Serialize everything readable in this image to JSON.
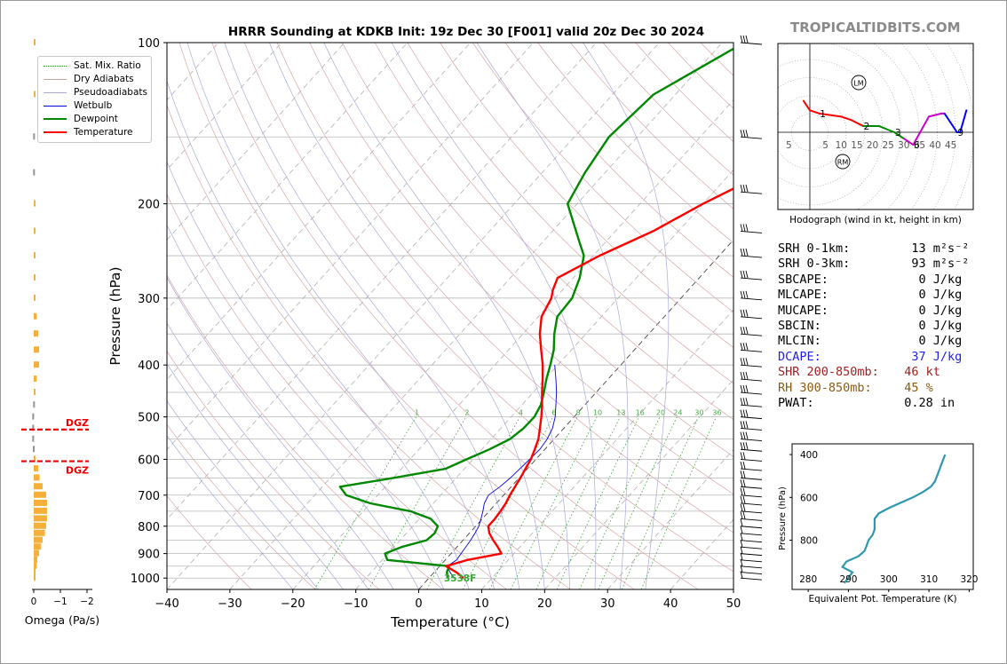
{
  "chart_data": {
    "type": "line",
    "title": "HRRR Sounding at KDKB Init: 19z Dec 30 [F001] valid 20z Dec 30 2024",
    "xlabel": "Temperature (°C)",
    "ylabel": "Pressure (hPa)",
    "xlim": [
      -40,
      50
    ],
    "ylim": [
      1050,
      100
    ],
    "y_scale": "log",
    "x_ticks": [
      "−40",
      "−30",
      "−20",
      "−10",
      "0",
      "10",
      "20",
      "30",
      "40",
      "50"
    ],
    "y_ticks": [
      "100",
      "200",
      "300",
      "400",
      "500",
      "600",
      "700",
      "800",
      "900",
      "1000"
    ],
    "series": [
      {
        "name": "Temperature",
        "color": "#ff0000",
        "p": [
          1000,
          975,
          950,
          925,
          900,
          875,
          850,
          825,
          800,
          775,
          750,
          725,
          700,
          675,
          650,
          625,
          600,
          575,
          550,
          525,
          500,
          475,
          450,
          425,
          400,
          375,
          350,
          325,
          300,
          290,
          275,
          250,
          225,
          200,
          175,
          150,
          125,
          100
        ],
        "t": [
          5.5,
          3.5,
          1.0,
          3.5,
          8.0,
          6.5,
          4.8,
          3.2,
          2.0,
          2.0,
          1.8,
          1.5,
          1.0,
          0.6,
          0.2,
          -0.3,
          -0.8,
          -1.6,
          -2.5,
          -3.8,
          -5.2,
          -6.8,
          -8.6,
          -10.4,
          -12.4,
          -14.8,
          -17.3,
          -19.5,
          -20.6,
          -21.5,
          -22.5,
          -19.0,
          -14.0,
          -10.0,
          -4.5,
          1.0,
          6.0,
          9.5
        ]
      },
      {
        "name": "Dewpoint",
        "color": "#008800",
        "p": [
          1000,
          975,
          950,
          925,
          900,
          875,
          850,
          825,
          800,
          775,
          750,
          725,
          700,
          675,
          650,
          625,
          600,
          575,
          550,
          525,
          500,
          475,
          450,
          425,
          400,
          375,
          350,
          325,
          300,
          275,
          250,
          235,
          200,
          175,
          150,
          125,
          100
        ],
        "t": [
          3.0,
          2.0,
          1.5,
          -9.2,
          -10.5,
          -8.8,
          -5.8,
          -5.5,
          -6.0,
          -8.2,
          -12.5,
          -20.0,
          -25.0,
          -27.2,
          -20.0,
          -13.0,
          -11.0,
          -8.8,
          -7.0,
          -6.4,
          -6.3,
          -7.0,
          -8.3,
          -9.8,
          -11.2,
          -12.8,
          -15.0,
          -17.0,
          -17.3,
          -19.0,
          -21.5,
          -24.3,
          -31.5,
          -33.2,
          -34.5,
          -33.5,
          -26.5
        ]
      },
      {
        "name": "Wetbulb",
        "color": "#0000dd",
        "p": [
          1000,
          975,
          950,
          925,
          900,
          875,
          850,
          825,
          800,
          775,
          750,
          725,
          700,
          675,
          650,
          625,
          600,
          575,
          550,
          525,
          500,
          475,
          450,
          425,
          400
        ],
        "t": [
          4.0,
          2.5,
          1.2,
          1.8,
          1.6,
          1.4,
          1.2,
          0.9,
          0.5,
          -0.2,
          -1.0,
          -1.9,
          -2.4,
          -1.8,
          -1.4,
          -1.2,
          -1.0,
          -0.8,
          -1.1,
          -1.8,
          -3.0,
          -4.6,
          -6.3,
          -8.3,
          -10.5
        ]
      }
    ],
    "legend": [
      "Sat. Mix. Ratio",
      "Dry Adiabats",
      "Pseudoadiabats",
      "Wetbulb",
      "Dewpoint",
      "Temperature"
    ],
    "legend_position": "top-left",
    "mixing_ratio_labels": [
      "1",
      "2",
      "4",
      "6",
      "8",
      "10",
      "13",
      "16",
      "20",
      "24",
      "30",
      "36"
    ],
    "surface_label": "3538F",
    "grid": true,
    "omega": {
      "xlabel": "Omega (Pa/s)",
      "x_ticks": [
        "0",
        "−1",
        "−2"
      ],
      "dgz_label": "DGZ",
      "dgz_top_hpa": 528,
      "dgz_bottom_hpa": 605,
      "p": [
        1000,
        975,
        950,
        925,
        900,
        875,
        850,
        825,
        800,
        775,
        750,
        725,
        700,
        675,
        650,
        625,
        600,
        575,
        550,
        525,
        500,
        475,
        450,
        425,
        400,
        375,
        350,
        325,
        300,
        275,
        250,
        225,
        200,
        175,
        150,
        125,
        100
      ],
      "omega": [
        -0.02,
        -0.06,
        -0.1,
        -0.12,
        -0.18,
        -0.25,
        -0.3,
        -0.38,
        -0.42,
        -0.45,
        -0.45,
        -0.45,
        -0.42,
        -0.3,
        -0.2,
        -0.15,
        -0.07,
        0.03,
        0.05,
        0.05,
        0.05,
        0.02,
        -0.04,
        -0.1,
        -0.18,
        -0.18,
        -0.15,
        -0.1,
        -0.03,
        -0.02,
        -0.02,
        -0.02,
        -0.02,
        0.02,
        0.02,
        -0.02,
        -0.02
      ]
    },
    "hodograph": {
      "xlabel": "Hodograph (wind in kt, height in km)",
      "ring_labels": [
        "5",
        "5",
        "10",
        "15",
        "20",
        "25",
        "30",
        "35",
        "40",
        "45"
      ],
      "height_labels": [
        "1",
        "2",
        "3",
        "6",
        "9"
      ],
      "storm_markers": [
        "LM",
        "RM"
      ],
      "u": [
        -2,
        0,
        3,
        10,
        13,
        17,
        22,
        27,
        30,
        33,
        38,
        42,
        43,
        47,
        48,
        50
      ],
      "v": [
        10,
        7,
        6,
        5,
        4,
        2,
        2,
        0,
        -2,
        -4,
        5,
        6,
        6,
        0,
        0,
        7
      ],
      "segment_colors": [
        "#ff0000",
        "#ff0000",
        "#ff0000",
        "#ff0000",
        "#ff0000",
        "#008800",
        "#008800",
        "#008800",
        "#cc00cc",
        "#cc00cc",
        "#cc00cc",
        "#cc00cc",
        "#0000ff",
        "#0000ff",
        "#0000ff"
      ]
    },
    "theta_e": {
      "xlabel": "Equivalent Pot. Temperature (K)",
      "ylabel": "Pressure (hPa)",
      "x_ticks": [
        "280",
        "290",
        "300",
        "310",
        "320"
      ],
      "y_ticks": [
        "400",
        "600",
        "800"
      ],
      "p": [
        1000,
        975,
        950,
        925,
        900,
        875,
        850,
        825,
        800,
        775,
        750,
        725,
        700,
        675,
        650,
        625,
        600,
        575,
        550,
        525,
        500,
        475,
        450,
        425,
        400
      ],
      "thetae": [
        289,
        290,
        291,
        288.5,
        289.5,
        292.5,
        294,
        294.5,
        295,
        296,
        296.5,
        296.5,
        296.5,
        297.5,
        300,
        303,
        306,
        308.5,
        310.5,
        311.5,
        312,
        312.5,
        313,
        313.5,
        314
      ]
    }
  },
  "header": {
    "brand": "TROPICALTIDBITS.COM"
  },
  "stats": [
    {
      "label": "SRH 0-1km:",
      "value": "   13 m²s⁻²",
      "color": "#000000"
    },
    {
      "label": "SRH 0-3km:",
      "value": "   93 m²s⁻²",
      "color": "#000000"
    },
    {
      "label": "SBCAPE:",
      "value": "    0 J/kg",
      "color": "#000000"
    },
    {
      "label": "MLCAPE:",
      "value": "    0 J/kg",
      "color": "#000000"
    },
    {
      "label": "MUCAPE:",
      "value": "    0 J/kg",
      "color": "#000000"
    },
    {
      "label": "SBCIN:",
      "value": "    0 J/kg",
      "color": "#000000"
    },
    {
      "label": "MLCIN:",
      "value": "    0 J/kg",
      "color": "#000000"
    },
    {
      "label": "DCAPE:",
      "value": "   37 J/kg",
      "color": "#2222dd"
    },
    {
      "label": "SHR 200-850mb:",
      "value": "  46 kt",
      "color": "#a02020"
    },
    {
      "label": "RH 300-850mb:",
      "value": "  45 %",
      "color": "#8a5a10"
    },
    {
      "label": "PWAT:",
      "value": "  0.28 in",
      "color": "#000000"
    }
  ]
}
